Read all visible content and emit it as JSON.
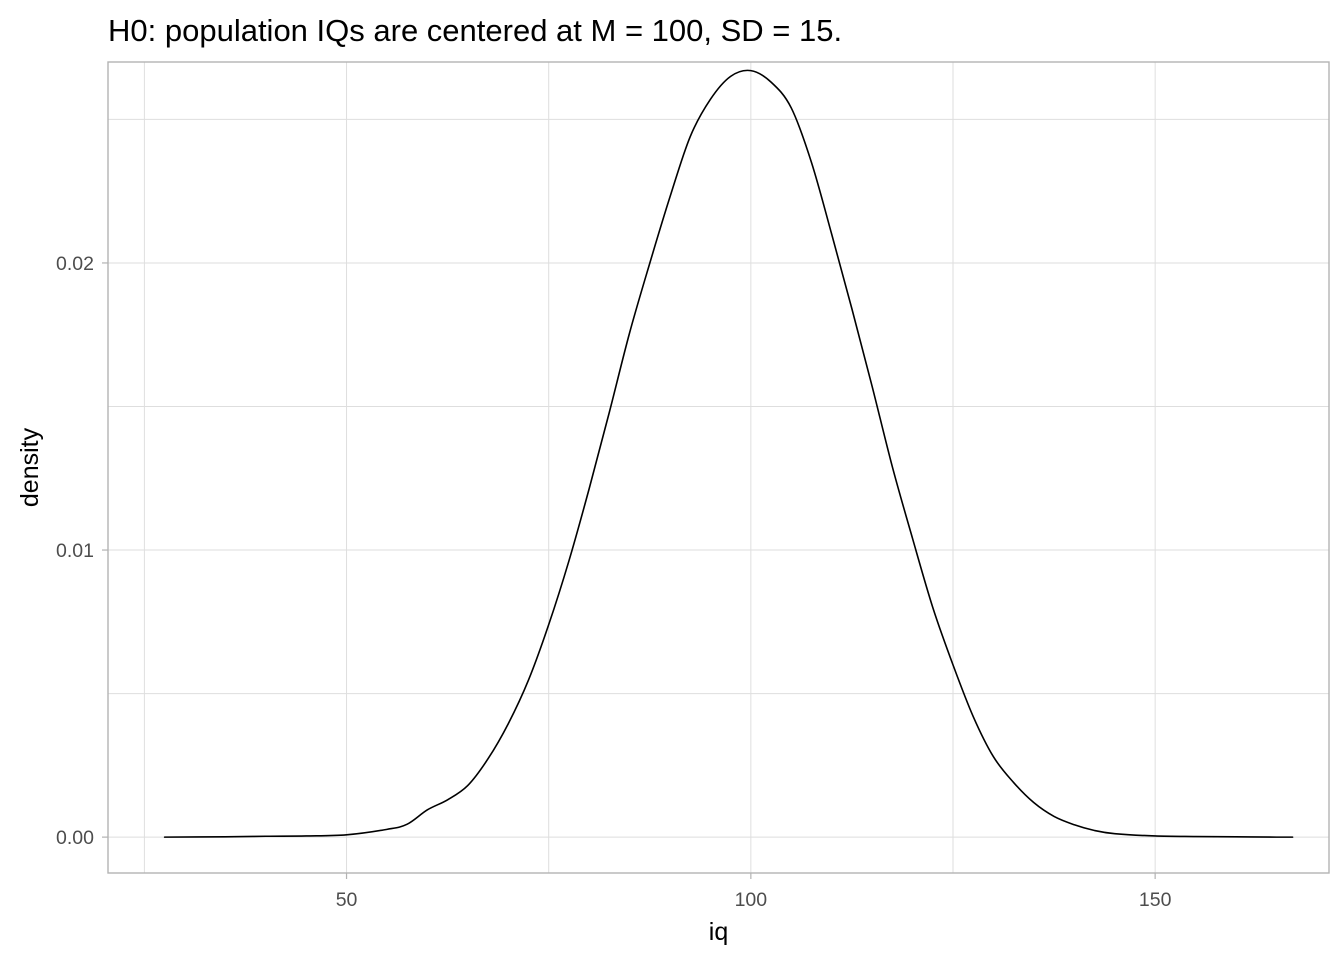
{
  "chart_data": {
    "type": "line",
    "title": "H0: population IQs are centered at M = 100, SD = 15.",
    "xlabel": "iq",
    "ylabel": "density",
    "xlim": [
      20.5,
      171.5
    ],
    "ylim": [
      -0.00125,
      0.027
    ],
    "x_ticks": [
      50,
      100,
      150
    ],
    "x_tick_labels": [
      "50",
      "100",
      "150"
    ],
    "y_ticks": [
      0.0,
      0.01,
      0.02
    ],
    "y_tick_labels": [
      "0.00",
      "0.01",
      "0.02"
    ],
    "grid": true,
    "line_color": "#000000",
    "series": [
      {
        "x": [
          27.5,
          35,
          40,
          45,
          50,
          55,
          57.5,
          60,
          62.5,
          65,
          67.5,
          70,
          72.5,
          75,
          77.5,
          80,
          82.5,
          85,
          87.5,
          90,
          92.5,
          95,
          97.5,
          100,
          102.5,
          105,
          107.5,
          110,
          112.5,
          115,
          117.5,
          120,
          122.5,
          125,
          127.5,
          130,
          132.5,
          135,
          137.5,
          140,
          142.5,
          145,
          150,
          155,
          160,
          165,
          175
        ],
        "y": [
          0.0,
          1e-05,
          3e-05,
          4e-05,
          8e-05,
          0.00027,
          0.00045,
          0.00095,
          0.0013,
          0.0018,
          0.00273,
          0.00395,
          0.00547,
          0.0074,
          0.00962,
          0.01213,
          0.0148,
          0.01756,
          0.01999,
          0.0223,
          0.0244,
          0.0257,
          0.0265,
          0.0267,
          0.0263,
          0.0254,
          0.0235,
          0.021,
          0.0184,
          0.0157,
          0.0129,
          0.0104,
          0.008,
          0.006,
          0.0042,
          0.0028,
          0.0019,
          0.0012,
          0.00072,
          0.00043,
          0.00023,
          0.00012,
          4e-05,
          2e-05,
          1e-05,
          0.0,
          0.0
        ]
      }
    ]
  }
}
